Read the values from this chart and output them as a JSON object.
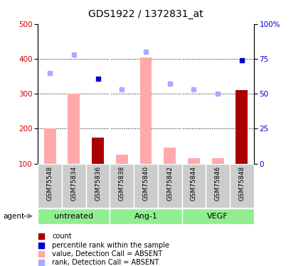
{
  "title": "GDS1922 / 1372831_at",
  "samples": [
    "GSM75548",
    "GSM75834",
    "GSM75836",
    "GSM75838",
    "GSM75840",
    "GSM75842",
    "GSM75844",
    "GSM75846",
    "GSM75848"
  ],
  "bar_values": [
    200,
    300,
    175,
    125,
    405,
    145,
    115,
    115,
    310
  ],
  "bar_colors": [
    "#ffaaaa",
    "#ffaaaa",
    "#aa0000",
    "#ffaaaa",
    "#ffaaaa",
    "#ffaaaa",
    "#ffaaaa",
    "#ffaaaa",
    "#aa0000"
  ],
  "rank_values": [
    65,
    78,
    61,
    53,
    80,
    57,
    53,
    50,
    74
  ],
  "rank_colors": [
    "#aaaaff",
    "#aaaaff",
    "#0000cc",
    "#aaaaff",
    "#aaaaff",
    "#aaaaff",
    "#aaaaff",
    "#aaaaff",
    "#0000cc"
  ],
  "groups": [
    {
      "label": "untreated",
      "samples": [
        0,
        1,
        2
      ]
    },
    {
      "label": "Ang-1",
      "samples": [
        3,
        4,
        5
      ]
    },
    {
      "label": "VEGF",
      "samples": [
        6,
        7,
        8
      ]
    }
  ],
  "ylim_left": [
    100,
    500
  ],
  "ylim_right": [
    0,
    100
  ],
  "yticks_left": [
    100,
    200,
    300,
    400,
    500
  ],
  "yticks_right": [
    0,
    25,
    50,
    75,
    100
  ],
  "ylabel_left_color": "#cc0000",
  "ylabel_right_color": "#0000cc",
  "gridlines": [
    200,
    300,
    400
  ],
  "legend_items": [
    {
      "label": "count",
      "color": "#aa0000"
    },
    {
      "label": "percentile rank within the sample",
      "color": "#0000cc"
    },
    {
      "label": "value, Detection Call = ABSENT",
      "color": "#ffaaaa"
    },
    {
      "label": "rank, Detection Call = ABSENT",
      "color": "#aaaaff"
    }
  ],
  "bar_width": 0.5,
  "group_color": "#90ee90",
  "sample_box_color": "#cccccc",
  "background_color": "#ffffff"
}
